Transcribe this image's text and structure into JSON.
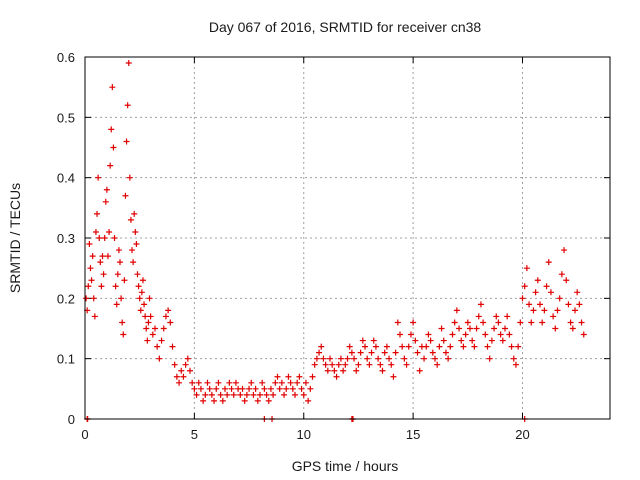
{
  "chart_data": {
    "type": "scatter",
    "title": "Day 067 of 2016, SRMTID for receiver cn38",
    "xlabel": "GPS time / hours",
    "ylabel": "SRMTID / TECUs",
    "xlim": [
      0,
      24
    ],
    "ylim": [
      0,
      0.6
    ],
    "xticks": [
      0,
      5,
      10,
      15,
      20
    ],
    "yticks": [
      0,
      0.1,
      0.2,
      0.3,
      0.4,
      0.5,
      0.6
    ],
    "grid": true,
    "marker": "+",
    "series": [
      {
        "name": "SRMTID",
        "color": "#e00000",
        "x": [
          0.05,
          0.1,
          0.15,
          0.2,
          0.25,
          0.3,
          0.35,
          0.4,
          0.45,
          0.5,
          0.55,
          0.6,
          0.65,
          0.7,
          0.75,
          0.8,
          0.85,
          0.9,
          0.95,
          1.0,
          1.05,
          1.1,
          1.15,
          1.2,
          1.25,
          1.3,
          1.35,
          1.4,
          1.45,
          1.5,
          1.55,
          1.6,
          1.65,
          1.7,
          1.75,
          1.8,
          1.85,
          1.9,
          1.95,
          2.0,
          2.05,
          2.1,
          2.15,
          2.2,
          2.25,
          2.3,
          2.35,
          2.4,
          2.45,
          2.5,
          2.55,
          2.6,
          2.65,
          2.7,
          2.75,
          2.8,
          2.85,
          2.9,
          2.95,
          3.0,
          3.1,
          3.2,
          3.3,
          3.4,
          3.5,
          3.6,
          3.7,
          3.8,
          3.9,
          4.0,
          4.1,
          4.2,
          4.3,
          4.4,
          4.5,
          4.6,
          4.7,
          4.8,
          4.9,
          5.0,
          5.1,
          5.2,
          5.3,
          5.4,
          5.5,
          5.6,
          5.7,
          5.8,
          5.9,
          6.0,
          6.1,
          6.2,
          6.3,
          6.4,
          6.5,
          6.6,
          6.7,
          6.8,
          6.9,
          7.0,
          7.1,
          7.2,
          7.3,
          7.4,
          7.5,
          7.6,
          7.7,
          7.8,
          7.9,
          8.0,
          8.1,
          8.2,
          8.3,
          8.4,
          8.5,
          8.6,
          8.7,
          8.8,
          8.9,
          9.0,
          9.1,
          9.2,
          9.3,
          9.4,
          9.5,
          9.6,
          9.7,
          9.8,
          9.9,
          10.0,
          10.1,
          10.2,
          10.3,
          10.4,
          10.5,
          10.6,
          10.7,
          10.8,
          10.9,
          11.0,
          11.1,
          11.2,
          11.3,
          11.4,
          11.5,
          11.6,
          11.7,
          11.8,
          11.9,
          12.0,
          12.1,
          12.2,
          12.3,
          12.4,
          12.5,
          12.6,
          12.7,
          12.8,
          12.9,
          13.0,
          13.1,
          13.2,
          13.3,
          13.4,
          13.5,
          13.6,
          13.7,
          13.8,
          13.9,
          14.0,
          14.1,
          14.2,
          14.3,
          14.4,
          14.5,
          14.6,
          14.7,
          14.8,
          14.9,
          15.0,
          15.1,
          15.2,
          15.3,
          15.4,
          15.5,
          15.6,
          15.7,
          15.8,
          15.9,
          16.0,
          16.1,
          16.2,
          16.3,
          16.4,
          16.5,
          16.6,
          16.7,
          16.8,
          16.9,
          17.0,
          17.1,
          17.2,
          17.3,
          17.4,
          17.5,
          17.6,
          17.7,
          17.8,
          17.9,
          18.0,
          18.1,
          18.2,
          18.3,
          18.4,
          18.5,
          18.6,
          18.7,
          18.8,
          18.9,
          19.0,
          19.1,
          19.2,
          19.3,
          19.4,
          19.5,
          19.6,
          19.7,
          19.8,
          19.9,
          20.0,
          20.1,
          20.2,
          20.3,
          20.4,
          20.5,
          20.6,
          20.7,
          20.8,
          20.9,
          21.0,
          21.1,
          21.2,
          21.3,
          21.4,
          21.5,
          21.6,
          21.7,
          21.8,
          21.9,
          22.0,
          22.1,
          22.2,
          22.3,
          22.4,
          22.5,
          22.6,
          22.7,
          22.8,
          0.1,
          0.12,
          8.2,
          8.55,
          12.2,
          12.25,
          20.1
        ],
        "y": [
          0.2,
          0.18,
          0.22,
          0.29,
          0.25,
          0.23,
          0.27,
          0.2,
          0.17,
          0.31,
          0.34,
          0.4,
          0.3,
          0.26,
          0.22,
          0.27,
          0.24,
          0.3,
          0.36,
          0.38,
          0.27,
          0.31,
          0.42,
          0.48,
          0.55,
          0.45,
          0.3,
          0.22,
          0.19,
          0.24,
          0.28,
          0.26,
          0.2,
          0.16,
          0.14,
          0.23,
          0.37,
          0.46,
          0.52,
          0.59,
          0.4,
          0.33,
          0.28,
          0.26,
          0.34,
          0.31,
          0.29,
          0.24,
          0.22,
          0.2,
          0.18,
          0.21,
          0.23,
          0.19,
          0.17,
          0.15,
          0.13,
          0.16,
          0.2,
          0.17,
          0.14,
          0.15,
          0.12,
          0.1,
          0.13,
          0.15,
          0.17,
          0.18,
          0.16,
          0.12,
          0.09,
          0.07,
          0.06,
          0.08,
          0.07,
          0.09,
          0.1,
          0.08,
          0.06,
          0.05,
          0.04,
          0.06,
          0.05,
          0.03,
          0.04,
          0.06,
          0.05,
          0.04,
          0.03,
          0.05,
          0.06,
          0.04,
          0.03,
          0.05,
          0.04,
          0.06,
          0.05,
          0.04,
          0.06,
          0.05,
          0.04,
          0.05,
          0.03,
          0.04,
          0.05,
          0.06,
          0.04,
          0.05,
          0.03,
          0.04,
          0.06,
          0.05,
          0.04,
          0.03,
          0.05,
          0.04,
          0.06,
          0.07,
          0.05,
          0.06,
          0.04,
          0.05,
          0.07,
          0.06,
          0.05,
          0.04,
          0.06,
          0.07,
          0.05,
          0.04,
          0.06,
          0.03,
          0.05,
          0.07,
          0.09,
          0.1,
          0.11,
          0.12,
          0.1,
          0.09,
          0.08,
          0.1,
          0.09,
          0.08,
          0.07,
          0.09,
          0.1,
          0.08,
          0.09,
          0.1,
          0.12,
          0.11,
          0.1,
          0.08,
          0.09,
          0.11,
          0.13,
          0.12,
          0.1,
          0.09,
          0.11,
          0.13,
          0.12,
          0.1,
          0.09,
          0.08,
          0.11,
          0.12,
          0.1,
          0.09,
          0.07,
          0.11,
          0.16,
          0.14,
          0.12,
          0.1,
          0.09,
          0.12,
          0.14,
          0.16,
          0.13,
          0.11,
          0.08,
          0.12,
          0.1,
          0.12,
          0.14,
          0.13,
          0.11,
          0.1,
          0.09,
          0.12,
          0.15,
          0.13,
          0.11,
          0.1,
          0.12,
          0.14,
          0.16,
          0.18,
          0.15,
          0.13,
          0.12,
          0.14,
          0.16,
          0.15,
          0.13,
          0.12,
          0.15,
          0.17,
          0.19,
          0.16,
          0.14,
          0.12,
          0.1,
          0.13,
          0.15,
          0.17,
          0.16,
          0.14,
          0.13,
          0.15,
          0.17,
          0.14,
          0.12,
          0.1,
          0.09,
          0.12,
          0.16,
          0.2,
          0.22,
          0.25,
          0.19,
          0.16,
          0.18,
          0.21,
          0.23,
          0.19,
          0.16,
          0.18,
          0.22,
          0.26,
          0.21,
          0.17,
          0.15,
          0.18,
          0.2,
          0.24,
          0.28,
          0.23,
          0.19,
          0.16,
          0.15,
          0.18,
          0.21,
          0.19,
          0.16,
          0.14,
          0,
          0,
          0,
          0,
          0,
          0,
          0
        ]
      }
    ]
  }
}
